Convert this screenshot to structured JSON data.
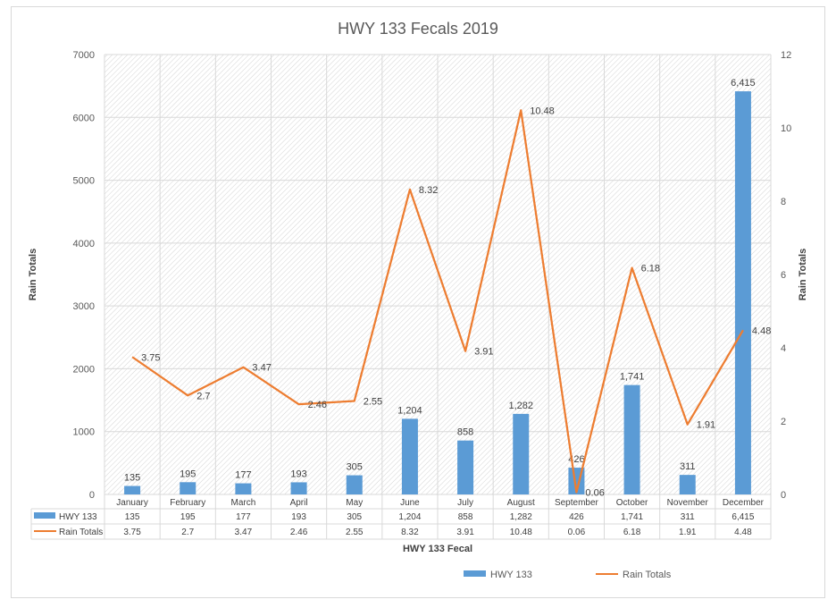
{
  "chart_data": {
    "type": "bar",
    "title": "HWY 133 Fecals 2019",
    "xlabel": "HWY 133 Fecal",
    "ylabel_left": "Rain Totals",
    "ylabel_right": "Rain Totals",
    "categories": [
      "January",
      "February",
      "March",
      "April",
      "May",
      "June",
      "July",
      "August",
      "September",
      "October",
      "November",
      "December"
    ],
    "y_left": {
      "min": 0,
      "max": 7000,
      "step": 1000,
      "ticks": [
        "0",
        "1000",
        "2000",
        "3000",
        "4000",
        "5000",
        "6000",
        "7000"
      ]
    },
    "y_right": {
      "min": 0,
      "max": 12,
      "step": 2,
      "ticks": [
        "0",
        "2",
        "4",
        "6",
        "8",
        "10",
        "12"
      ]
    },
    "grid": true,
    "legend_position": "bottom",
    "series": [
      {
        "name": "HWY 133",
        "kind": "bar",
        "axis": "left",
        "color": "#5b9bd5",
        "values": [
          135,
          195,
          177,
          193,
          305,
          1204,
          858,
          1282,
          426,
          1741,
          311,
          6415
        ],
        "labels": [
          "135",
          "195",
          "177",
          "193",
          "305",
          "1,204",
          "858",
          "1,282",
          "426",
          "1,741",
          "311",
          "6,415"
        ]
      },
      {
        "name": "Rain Totals",
        "kind": "line",
        "axis": "right",
        "color": "#ed7d31",
        "values": [
          3.75,
          2.7,
          3.47,
          2.46,
          2.55,
          8.32,
          3.91,
          10.48,
          0.06,
          6.18,
          1.91,
          4.48
        ],
        "labels": [
          "3.75",
          "2.7",
          "3.47",
          "2.46",
          "2.55",
          "8.32",
          "3.91",
          "10.48",
          "0.06",
          "6.18",
          "1.91",
          "4.48"
        ]
      }
    ]
  }
}
